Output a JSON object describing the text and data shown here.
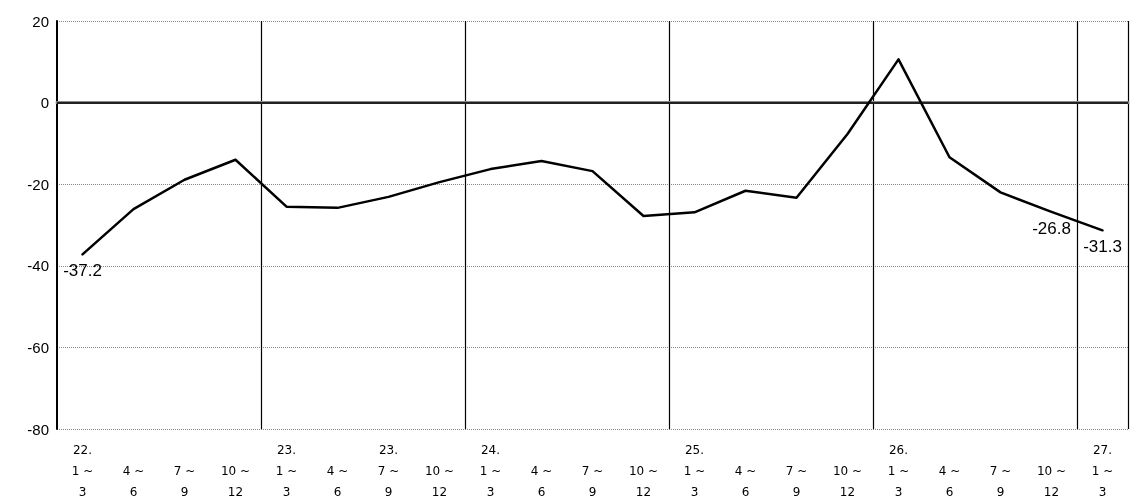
{
  "chart_data": {
    "type": "line",
    "categories": [
      "22.\n1 ~\n3",
      "4 ~\n6",
      "7 ~\n9",
      "10 ~\n12",
      "23.\n1 ~\n3",
      "4 ~\n6",
      "23.\n7 ~\n9",
      "10 ~\n12",
      "24.\n1 ~\n3",
      "4 ~\n6",
      "7 ~\n9",
      "10 ~\n12",
      "25.\n1 ~\n3",
      "4 ~\n6",
      "7 ~\n9",
      "10 ~\n12",
      "26.\n1 ~\n3",
      "4 ~\n6",
      "7 ~\n9",
      "10 ~\n12",
      "27.\n1 ~\n3"
    ],
    "series": [
      {
        "color": "#000000",
        "values": [
          -37.2,
          -26.1,
          -18.9,
          -14.0,
          -25.5,
          -25.8,
          -23.1,
          -19.5,
          -16.3,
          -14.3,
          -16.8,
          -27.8,
          -26.9,
          -21.6,
          -23.3,
          -7.7,
          10.6,
          -13.4,
          -22.0,
          -26.8,
          -31.3
        ],
        "value_labels": [
          "-37.2",
          null,
          null,
          null,
          null,
          null,
          null,
          null,
          null,
          null,
          null,
          null,
          null,
          null,
          null,
          null,
          null,
          null,
          null,
          "-26.8",
          "-31.3"
        ]
      }
    ],
    "ylim": [
      -80,
      20
    ],
    "yticks": [
      -80,
      -60,
      -40,
      -20,
      0,
      20
    ],
    "grid": true,
    "marker": "none",
    "line_style": "solid",
    "ref_lines": [
      {
        "axis": "y",
        "value": 0,
        "color": "#000000",
        "line_style": "solid"
      }
    ]
  }
}
